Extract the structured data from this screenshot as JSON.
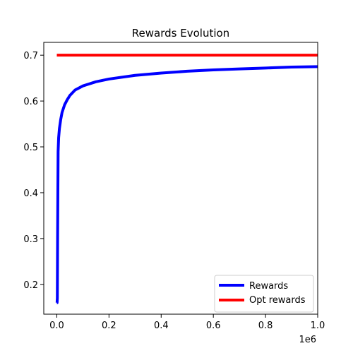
{
  "chart_data": {
    "type": "line",
    "title": "Rewards Evolution",
    "xlabel": "",
    "ylabel": "",
    "x_offset_label": "1e6",
    "xlim": [
      -0.05,
      1.0
    ],
    "ylim": [
      0.135,
      0.728
    ],
    "x_ticks": [
      0.0,
      0.2,
      0.4,
      0.6,
      0.8,
      1.0
    ],
    "x_tick_labels": [
      "0.0",
      "0.2",
      "0.4",
      "0.6",
      "0.8",
      "1.0"
    ],
    "y_ticks": [
      0.2,
      0.3,
      0.4,
      0.5,
      0.6,
      0.7
    ],
    "y_tick_labels": [
      "0.2",
      "0.3",
      "0.4",
      "0.5",
      "0.6",
      "0.7"
    ],
    "grid": false,
    "legend_position": "lower-right",
    "series": [
      {
        "name": "Rewards",
        "color": "#0000ff",
        "x": [
          0.0,
          0.001,
          0.002,
          0.003,
          0.004,
          0.005,
          0.007,
          0.01,
          0.015,
          0.02,
          0.03,
          0.04,
          0.05,
          0.07,
          0.1,
          0.15,
          0.2,
          0.3,
          0.4,
          0.5,
          0.6,
          0.7,
          0.8,
          0.9,
          1.0
        ],
        "y": [
          0.16,
          0.16,
          0.17,
          0.3,
          0.4,
          0.49,
          0.52,
          0.54,
          0.56,
          0.575,
          0.592,
          0.603,
          0.612,
          0.624,
          0.633,
          0.642,
          0.648,
          0.656,
          0.661,
          0.665,
          0.668,
          0.67,
          0.672,
          0.674,
          0.675
        ]
      },
      {
        "name": "Opt rewards",
        "color": "#ff0000",
        "x": [
          0.0,
          1.0
        ],
        "y": [
          0.7,
          0.7
        ]
      }
    ]
  }
}
